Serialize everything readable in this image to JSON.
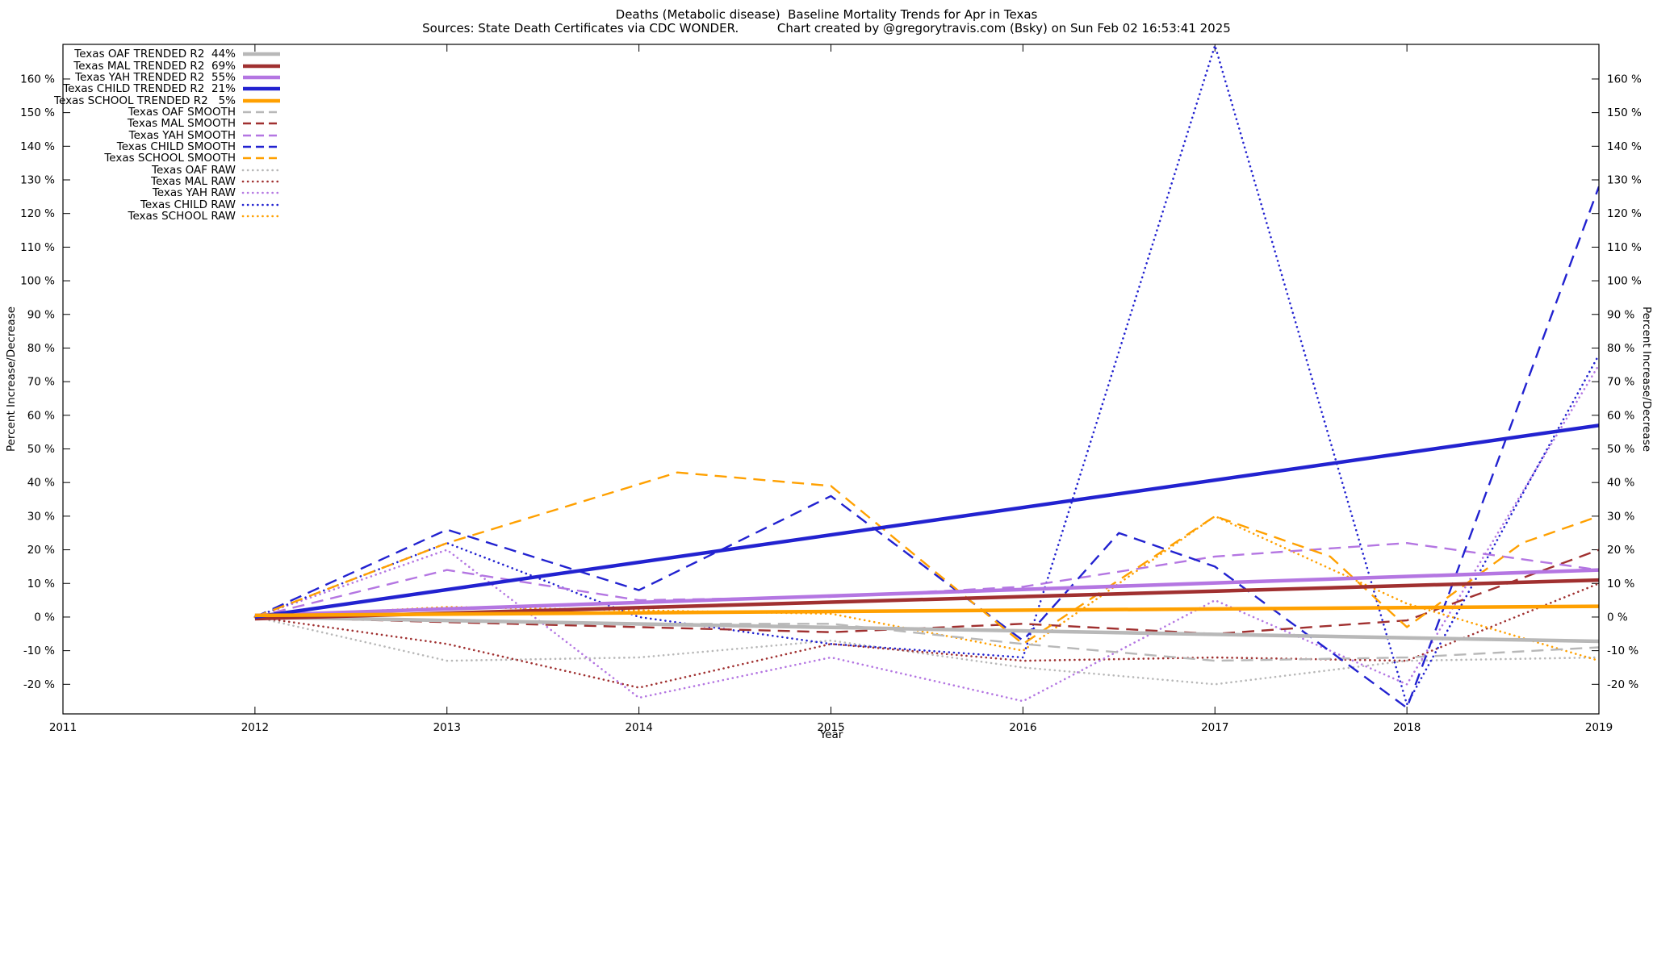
{
  "header": {
    "title_line": "Deaths (Metabolic disease)  Baseline Mortality Trends for Apr in Texas",
    "subtitle_line": "Sources: State Death Certificates via CDC WONDER.          Chart created by @gregorytravis.com (Bsky) on Sun Feb 02 16:53:41 2025"
  },
  "axes": {
    "x_label": "Year",
    "y_label": "Percent Increase/Decrease"
  },
  "chart_data": {
    "type": "line",
    "title": "Deaths (Metabolic disease)  Baseline Mortality Trends for Apr in Texas",
    "subtitle": "Sources: State Death Certificates via CDC WONDER.  Chart created by @gregorytravis.com (Bsky) on Sun Feb 02 16:53:41 2025",
    "xlabel": "Year",
    "ylabel": "Percent Increase/Decrease",
    "ylabel_right": "Percent Increase/Decrease",
    "xlim": [
      2011,
      2019
    ],
    "ylim": [
      -28.8,
      170.3
    ],
    "x_ticks": [
      2011,
      2012,
      2013,
      2014,
      2015,
      2016,
      2017,
      2018,
      2019
    ],
    "y_ticks": [
      -20,
      -10,
      0,
      10,
      20,
      30,
      40,
      50,
      60,
      70,
      80,
      90,
      100,
      110,
      120,
      130,
      140,
      150,
      160
    ],
    "y_tick_suffix": " %",
    "grid": false,
    "legend_position": "top-left-inside",
    "series": [
      {
        "id": "oaf-trended",
        "name": "Texas OAF TRENDED",
        "legend_label": "Texas OAF TRENDED R2  44%",
        "color": "#b8b8b8",
        "style": "solid",
        "points": [
          [
            2012,
            0
          ],
          [
            2019,
            -7.2
          ]
        ]
      },
      {
        "id": "mal-trended",
        "name": "Texas MAL TRENDED",
        "legend_label": "Texas MAL TRENDED R2  69%",
        "color": "#a03030",
        "style": "solid",
        "points": [
          [
            2012,
            -0.5
          ],
          [
            2019,
            11
          ]
        ]
      },
      {
        "id": "yah-trended",
        "name": "Texas YAH TRENDED",
        "legend_label": "Texas YAH TRENDED R2  55%",
        "color": "#b476e2",
        "style": "solid",
        "points": [
          [
            2012,
            0.5
          ],
          [
            2019,
            14
          ]
        ]
      },
      {
        "id": "child-trended",
        "name": "Texas CHILD TRENDED",
        "legend_label": "Texas CHILD TRENDED R2  21%",
        "color": "#2222d0",
        "style": "solid",
        "points": [
          [
            2012,
            0
          ],
          [
            2019,
            57
          ]
        ]
      },
      {
        "id": "school-trended",
        "name": "Texas SCHOOL TRENDED",
        "legend_label": "Texas SCHOOL TRENDED R2   5%",
        "color": "#ffa000",
        "style": "solid",
        "points": [
          [
            2012,
            0.5
          ],
          [
            2019,
            3.2
          ]
        ]
      },
      {
        "id": "oaf-smooth",
        "name": "Texas OAF SMOOTH",
        "legend_label": "Texas OAF SMOOTH",
        "color": "#b8b8b8",
        "style": "dashed",
        "points": [
          [
            2012,
            0
          ],
          [
            2013,
            -1
          ],
          [
            2014,
            -2
          ],
          [
            2015,
            -2
          ],
          [
            2016,
            -8
          ],
          [
            2017,
            -13
          ],
          [
            2018,
            -12
          ],
          [
            2019,
            -9
          ]
        ]
      },
      {
        "id": "mal-smooth",
        "name": "Texas MAL SMOOTH",
        "legend_label": "Texas MAL SMOOTH",
        "color": "#a03030",
        "style": "dashed",
        "points": [
          [
            2012,
            0
          ],
          [
            2013,
            -1.5
          ],
          [
            2014,
            -3
          ],
          [
            2015,
            -4.5
          ],
          [
            2016,
            -2
          ],
          [
            2017,
            -5
          ],
          [
            2018,
            -1
          ],
          [
            2019,
            20
          ]
        ]
      },
      {
        "id": "yah-smooth",
        "name": "Texas YAH SMOOTH",
        "legend_label": "Texas YAH SMOOTH",
        "color": "#b476e2",
        "style": "dashed",
        "points": [
          [
            2012,
            0
          ],
          [
            2013,
            14
          ],
          [
            2014,
            5
          ],
          [
            2015,
            6
          ],
          [
            2016,
            9
          ],
          [
            2017,
            18
          ],
          [
            2018,
            22
          ],
          [
            2019,
            14
          ]
        ]
      },
      {
        "id": "child-smooth",
        "name": "Texas CHILD SMOOTH",
        "legend_label": "Texas CHILD SMOOTH",
        "color": "#2222d0",
        "style": "dashed",
        "points": [
          [
            2012,
            0
          ],
          [
            2013,
            26
          ],
          [
            2014,
            8
          ],
          [
            2015,
            36
          ],
          [
            2016,
            -7
          ],
          [
            2016.5,
            25
          ],
          [
            2017,
            15
          ],
          [
            2018,
            -27
          ],
          [
            2019,
            128
          ]
        ]
      },
      {
        "id": "school-smooth",
        "name": "Texas SCHOOL SMOOTH",
        "legend_label": "Texas SCHOOL SMOOTH",
        "color": "#ffa000",
        "style": "dashed",
        "points": [
          [
            2012,
            0
          ],
          [
            2013,
            22
          ],
          [
            2014.2,
            43
          ],
          [
            2015,
            39
          ],
          [
            2016,
            -8
          ],
          [
            2017,
            30
          ],
          [
            2017.6,
            18
          ],
          [
            2018,
            -3
          ],
          [
            2018.6,
            22
          ],
          [
            2019,
            30
          ]
        ]
      },
      {
        "id": "oaf-raw",
        "name": "Texas OAF RAW",
        "legend_label": "Texas OAF RAW",
        "color": "#b8b8b8",
        "style": "dotted",
        "points": [
          [
            2012,
            0
          ],
          [
            2013,
            -13
          ],
          [
            2014,
            -12
          ],
          [
            2015,
            -7
          ],
          [
            2016,
            -15
          ],
          [
            2017,
            -20
          ],
          [
            2018,
            -13
          ],
          [
            2019,
            -12
          ]
        ]
      },
      {
        "id": "mal-raw",
        "name": "Texas MAL RAW",
        "legend_label": "Texas MAL RAW",
        "color": "#a03030",
        "style": "dotted",
        "points": [
          [
            2012,
            0
          ],
          [
            2013,
            -8
          ],
          [
            2014,
            -21
          ],
          [
            2015,
            -8
          ],
          [
            2016,
            -13
          ],
          [
            2017,
            -12
          ],
          [
            2018,
            -13
          ],
          [
            2019,
            10
          ]
        ]
      },
      {
        "id": "yah-raw",
        "name": "Texas YAH RAW",
        "legend_label": "Texas YAH RAW",
        "color": "#b476e2",
        "style": "dotted",
        "points": [
          [
            2012,
            0
          ],
          [
            2013,
            20
          ],
          [
            2014,
            -24
          ],
          [
            2015,
            -12
          ],
          [
            2016,
            -25
          ],
          [
            2017,
            5
          ],
          [
            2018,
            -20
          ],
          [
            2019,
            75
          ]
        ]
      },
      {
        "id": "child-raw",
        "name": "Texas CHILD RAW",
        "legend_label": "Texas CHILD RAW",
        "color": "#2222d0",
        "style": "dotted",
        "points": [
          [
            2012,
            0
          ],
          [
            2013,
            22
          ],
          [
            2014,
            0
          ],
          [
            2015,
            -8
          ],
          [
            2016,
            -12
          ],
          [
            2017,
            170
          ],
          [
            2018,
            -26
          ],
          [
            2019,
            78
          ]
        ]
      },
      {
        "id": "school-raw",
        "name": "Texas SCHOOL RAW",
        "legend_label": "Texas SCHOOL RAW",
        "color": "#ffa000",
        "style": "dotted",
        "points": [
          [
            2012,
            0
          ],
          [
            2013,
            3
          ],
          [
            2014,
            2
          ],
          [
            2015,
            1
          ],
          [
            2016,
            -10
          ],
          [
            2017,
            30
          ],
          [
            2018,
            4
          ],
          [
            2019,
            -13
          ]
        ]
      }
    ]
  }
}
